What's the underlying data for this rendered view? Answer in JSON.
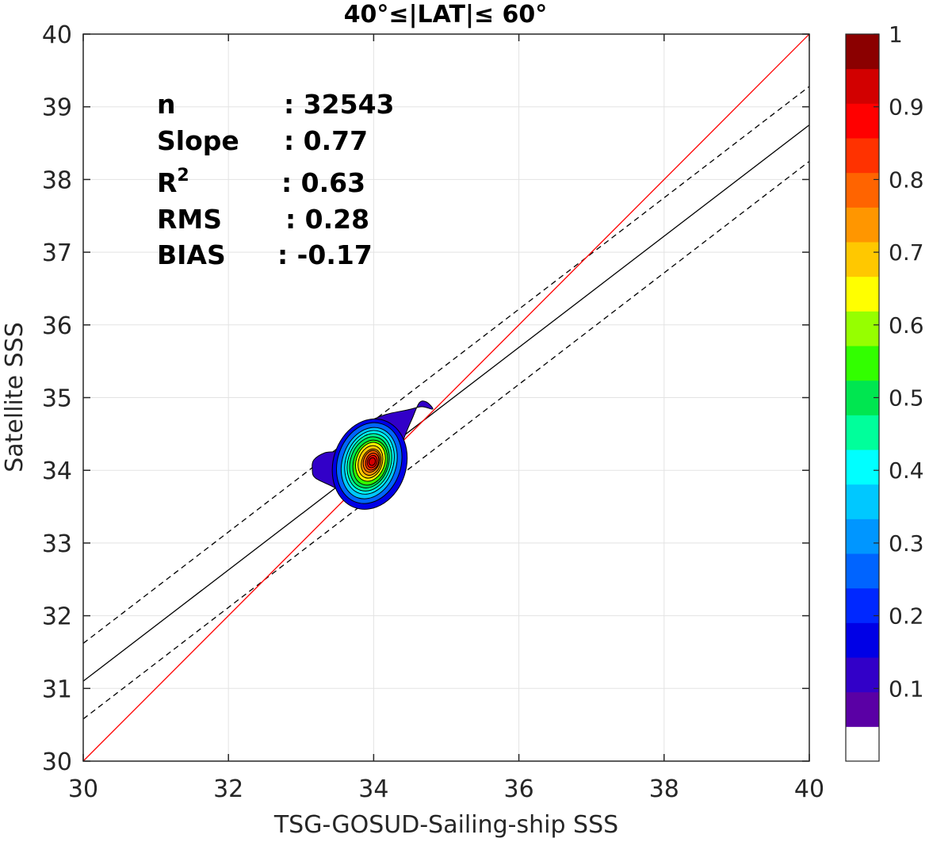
{
  "chart_data": {
    "type": "contour-scatter",
    "title": "40°≤|LAT|≤ 60°",
    "xlabel": "TSG-GOSUD-Sailing-ship SSS",
    "ylabel": "Satellite SSS",
    "xlim": [
      30,
      40
    ],
    "ylim": [
      30,
      40
    ],
    "xticks": [
      "30",
      "32",
      "34",
      "36",
      "38",
      "40"
    ],
    "yticks": [
      "30",
      "31",
      "32",
      "33",
      "34",
      "35",
      "36",
      "37",
      "38",
      "39",
      "40"
    ],
    "grid": true,
    "stats": [
      {
        "label": "n",
        "value": ": 32543"
      },
      {
        "label": "Slope",
        "value": ": 0.77"
      },
      {
        "label": "R",
        "sup": "2",
        "value": ": 0.63"
      },
      {
        "label": "RMS",
        "value": ": 0.28"
      },
      {
        "label": "BIAS",
        "value": ": -0.17"
      }
    ],
    "lines": {
      "identity": {
        "x": [
          30,
          40
        ],
        "y": [
          30,
          40
        ],
        "color": "#ff0000"
      },
      "regression": {
        "x": [
          30,
          40
        ],
        "y": [
          31.1,
          38.75
        ],
        "color": "#000000"
      },
      "upper_bound": {
        "x": [
          30,
          40
        ],
        "y": [
          31.62,
          39.28
        ],
        "style": "dashed"
      },
      "lower_bound": {
        "x": [
          30,
          40
        ],
        "y": [
          30.58,
          38.25
        ],
        "style": "dashed"
      }
    },
    "density_peak": {
      "x": 33.98,
      "y": 34.12
    },
    "colorbar": {
      "range": [
        0,
        1
      ],
      "ticks": [
        "0.1",
        "0.2",
        "0.3",
        "0.4",
        "0.5",
        "0.6",
        "0.7",
        "0.8",
        "0.9",
        "1"
      ],
      "colors": [
        "#ffffff",
        "#5a00a5",
        "#3200c8",
        "#0000e6",
        "#0028ff",
        "#0064ff",
        "#0096ff",
        "#00c8ff",
        "#00ffff",
        "#00ff9b",
        "#00e650",
        "#32ff00",
        "#96ff00",
        "#ffff00",
        "#ffc800",
        "#ff9600",
        "#ff6400",
        "#ff3200",
        "#ff0000",
        "#d20000",
        "#8b0000"
      ]
    }
  }
}
